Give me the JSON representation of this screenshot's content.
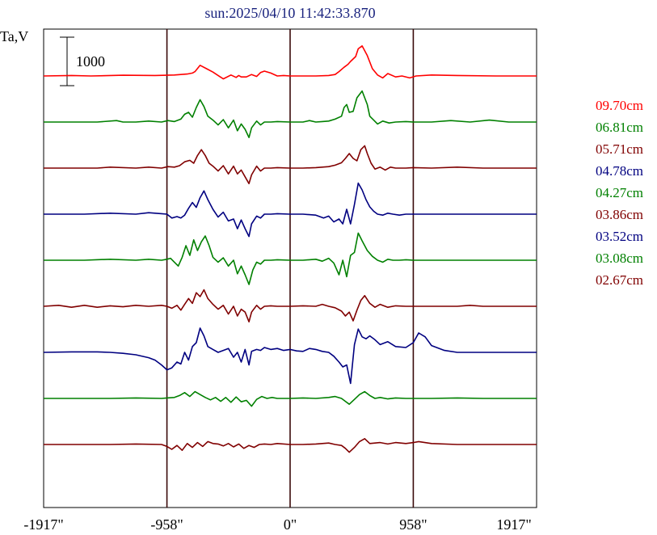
{
  "chart_data": {
    "type": "line",
    "title": "sun:2025/04/10 11:42:33.870",
    "ylabel": "Ta,V",
    "xlabel": "",
    "xlim": [
      -1917,
      1917
    ],
    "x_ticks": [
      -1917,
      -958,
      0,
      958,
      1917
    ],
    "x_tick_labels": [
      "-1917\"",
      "-958\"",
      "0\"",
      "958\"",
      "1917\""
    ],
    "vertical_lines": [
      -958,
      0,
      958
    ],
    "scale_bar": {
      "label": "1000",
      "value": 1000
    },
    "grid": false,
    "legend_position": "right",
    "colors": {
      "red": "#ff0000",
      "green": "#008000",
      "maroon": "#800000",
      "navy": "#000080",
      "frame": "#000000",
      "guide": "#3a0a0a",
      "title": "#1a237e"
    },
    "series": [
      {
        "name": "09.70cm",
        "color": "#ff0000",
        "baseline": 4650,
        "x": [
          -1917,
          -1700,
          -1550,
          -1300,
          -1050,
          -900,
          -800,
          -760,
          -740,
          -700,
          -650,
          -600,
          -560,
          -520,
          -460,
          -420,
          -400,
          -380,
          -340,
          -300,
          -260,
          -230,
          -200,
          -150,
          -100,
          -50,
          0,
          100,
          200,
          300,
          350,
          380,
          420,
          450,
          470,
          510,
          530,
          560,
          600,
          640,
          680,
          720,
          760,
          820,
          870,
          930,
          980,
          1100,
          1300,
          1600,
          1917
        ],
        "y": [
          0,
          10,
          0,
          15,
          10,
          20,
          40,
          60,
          90,
          220,
          150,
          80,
          10,
          -60,
          20,
          -30,
          10,
          -20,
          -20,
          30,
          -10,
          70,
          100,
          60,
          0,
          10,
          0,
          0,
          0,
          10,
          30,
          90,
          180,
          240,
          300,
          400,
          560,
          620,
          420,
          150,
          20,
          -40,
          50,
          -20,
          0,
          -40,
          0,
          20,
          10,
          0,
          0
        ]
      },
      {
        "name": "06.81cm",
        "color": "#008000",
        "baseline": 3700,
        "x": [
          -1917,
          -1500,
          -1350,
          -1300,
          -1200,
          -1100,
          -1000,
          -950,
          -900,
          -850,
          -820,
          -790,
          -760,
          -730,
          -700,
          -670,
          -640,
          -600,
          -560,
          -520,
          -480,
          -440,
          -410,
          -380,
          -350,
          -320,
          -300,
          -260,
          -230,
          -200,
          -150,
          -100,
          0,
          100,
          150,
          200,
          250,
          300,
          350,
          400,
          420,
          440,
          460,
          490,
          520,
          560,
          600,
          620,
          650,
          680,
          720,
          770,
          820,
          900,
          958,
          1100,
          1250,
          1400,
          1550,
          1700,
          1917
        ],
        "y": [
          0,
          0,
          30,
          0,
          0,
          20,
          0,
          30,
          10,
          60,
          160,
          200,
          100,
          300,
          460,
          320,
          120,
          40,
          -60,
          50,
          -120,
          40,
          -180,
          -40,
          -150,
          -320,
          -120,
          20,
          -60,
          0,
          0,
          10,
          0,
          0,
          30,
          0,
          10,
          20,
          60,
          120,
          300,
          360,
          200,
          220,
          500,
          640,
          360,
          120,
          40,
          -40,
          20,
          -20,
          0,
          10,
          0,
          0,
          30,
          0,
          40,
          0,
          0
        ]
      },
      {
        "name": "05.71cm",
        "color": "#800000",
        "baseline": 2750,
        "x": [
          -1917,
          -1500,
          -1400,
          -1200,
          -1100,
          -1000,
          -950,
          -900,
          -860,
          -820,
          -780,
          -750,
          -720,
          -690,
          -660,
          -630,
          -600,
          -560,
          -520,
          -480,
          -440,
          -410,
          -380,
          -350,
          -320,
          -300,
          -260,
          -230,
          -200,
          -150,
          -100,
          0,
          100,
          200,
          300,
          350,
          400,
          430,
          460,
          490,
          520,
          550,
          580,
          600,
          630,
          660,
          700,
          740,
          780,
          820,
          900,
          958,
          1100,
          1300,
          1500,
          1700,
          1917
        ],
        "y": [
          0,
          0,
          20,
          0,
          20,
          0,
          30,
          20,
          50,
          130,
          160,
          100,
          260,
          380,
          260,
          100,
          40,
          -60,
          50,
          -120,
          40,
          -120,
          -40,
          -180,
          -320,
          -140,
          40,
          -60,
          0,
          0,
          10,
          0,
          0,
          10,
          30,
          60,
          110,
          200,
          300,
          200,
          150,
          380,
          460,
          300,
          100,
          -20,
          20,
          -40,
          20,
          0,
          0,
          10,
          0,
          20,
          0,
          0,
          0
        ]
      },
      {
        "name": "04.78cm",
        "color": "#000080",
        "baseline": 1800,
        "x": [
          -1917,
          -1600,
          -1400,
          -1200,
          -1100,
          -1000,
          -958,
          -920,
          -880,
          -850,
          -820,
          -790,
          -760,
          -730,
          -700,
          -670,
          -640,
          -600,
          -560,
          -520,
          -480,
          -440,
          -410,
          -380,
          -350,
          -320,
          -300,
          -260,
          -230,
          -200,
          -150,
          -100,
          0,
          100,
          200,
          260,
          300,
          340,
          380,
          410,
          440,
          470,
          500,
          530,
          560,
          590,
          620,
          650,
          680,
          720,
          760,
          800,
          850,
          900,
          958,
          1100,
          1300,
          1500,
          1700,
          1917
        ],
        "y": [
          0,
          0,
          20,
          0,
          30,
          10,
          0,
          -80,
          -50,
          -80,
          -20,
          120,
          240,
          140,
          340,
          480,
          300,
          100,
          -60,
          40,
          -140,
          -100,
          -300,
          -120,
          -300,
          -460,
          -200,
          -40,
          -80,
          0,
          0,
          10,
          0,
          0,
          -20,
          -80,
          -40,
          -160,
          -100,
          -200,
          100,
          -200,
          200,
          640,
          500,
          300,
          150,
          60,
          0,
          -20,
          20,
          0,
          -20,
          0,
          0,
          0,
          0,
          0,
          0,
          0
        ]
      },
      {
        "name": "04.27cm",
        "color": "#008000",
        "baseline": 850,
        "x": [
          -1917,
          -1600,
          -1400,
          -1200,
          -1100,
          -1000,
          -958,
          -930,
          -900,
          -870,
          -840,
          -810,
          -780,
          -750,
          -720,
          -690,
          -660,
          -630,
          -600,
          -560,
          -520,
          -480,
          -440,
          -410,
          -380,
          -350,
          -320,
          -290,
          -260,
          -230,
          -200,
          -150,
          -100,
          0,
          100,
          200,
          250,
          300,
          340,
          380,
          410,
          440,
          470,
          500,
          530,
          560,
          600,
          640,
          680,
          720,
          760,
          800,
          850,
          900,
          958,
          1100,
          1300,
          1500,
          1700,
          1917
        ],
        "y": [
          0,
          0,
          20,
          0,
          20,
          0,
          20,
          40,
          -40,
          -120,
          60,
          300,
          100,
          420,
          200,
          380,
          500,
          300,
          60,
          -40,
          50,
          -120,
          0,
          -280,
          -120,
          -300,
          -500,
          -200,
          -40,
          -80,
          0,
          0,
          10,
          0,
          0,
          20,
          -20,
          40,
          -60,
          -300,
          0,
          -340,
          100,
          160,
          560,
          400,
          200,
          80,
          0,
          -40,
          20,
          0,
          0,
          10,
          0,
          0,
          0,
          0,
          0,
          0
        ]
      },
      {
        "name": "03.86cm",
        "color": "#800000",
        "baseline": -100,
        "x": [
          -1917,
          -1800,
          -1700,
          -1600,
          -1500,
          -1400,
          -1300,
          -1200,
          -1100,
          -1000,
          -958,
          -920,
          -880,
          -850,
          -820,
          -790,
          -760,
          -730,
          -700,
          -670,
          -640,
          -600,
          -560,
          -520,
          -480,
          -440,
          -410,
          -380,
          -350,
          -320,
          -300,
          -260,
          -230,
          -200,
          -150,
          -100,
          0,
          100,
          200,
          250,
          300,
          350,
          400,
          430,
          460,
          490,
          520,
          550,
          580,
          620,
          660,
          700,
          760,
          820,
          900,
          958,
          1100,
          1300,
          1400,
          1500,
          1700,
          1917
        ],
        "y": [
          0,
          20,
          -20,
          20,
          -20,
          10,
          -10,
          20,
          0,
          20,
          0,
          -40,
          20,
          -80,
          40,
          160,
          60,
          280,
          200,
          340,
          160,
          40,
          -60,
          20,
          -160,
          0,
          -200,
          -60,
          -120,
          -320,
          -120,
          20,
          -60,
          0,
          10,
          0,
          0,
          10,
          0,
          40,
          0,
          -30,
          -100,
          -200,
          -120,
          -300,
          -80,
          120,
          220,
          60,
          -20,
          40,
          -20,
          10,
          0,
          0,
          0,
          0,
          20,
          0,
          0,
          0
        ]
      },
      {
        "name": "03.52cm",
        "color": "#000080",
        "baseline": -1050,
        "x": [
          -1917,
          -1700,
          -1500,
          -1400,
          -1300,
          -1200,
          -1100,
          -1050,
          -1000,
          -958,
          -920,
          -880,
          -850,
          -820,
          -790,
          -760,
          -730,
          -700,
          -670,
          -640,
          -600,
          -560,
          -520,
          -480,
          -440,
          -410,
          -380,
          -350,
          -320,
          -300,
          -260,
          -230,
          -200,
          -150,
          -100,
          -50,
          0,
          50,
          100,
          150,
          200,
          250,
          300,
          340,
          380,
          410,
          440,
          470,
          500,
          530,
          560,
          590,
          620,
          660,
          700,
          760,
          820,
          900,
          958,
          1000,
          1050,
          1100,
          1200,
          1300,
          1500,
          1700,
          1917
        ],
        "y": [
          0,
          10,
          10,
          0,
          -20,
          -50,
          -110,
          -160,
          -260,
          -360,
          -320,
          -200,
          -240,
          0,
          -160,
          120,
          200,
          500,
          340,
          120,
          60,
          0,
          40,
          80,
          -100,
          0,
          -200,
          60,
          -260,
          20,
          60,
          40,
          100,
          60,
          80,
          40,
          60,
          30,
          20,
          80,
          60,
          20,
          0,
          -80,
          -200,
          -300,
          -260,
          -640,
          160,
          480,
          320,
          280,
          340,
          260,
          160,
          220,
          120,
          100,
          200,
          400,
          320,
          140,
          40,
          0,
          0,
          0,
          0
        ]
      },
      {
        "name": "03.08cm",
        "color": "#008000",
        "baseline": -2000,
        "x": [
          -1917,
          -1600,
          -1400,
          -1200,
          -1000,
          -958,
          -900,
          -860,
          -820,
          -780,
          -740,
          -700,
          -660,
          -620,
          -580,
          -540,
          -500,
          -460,
          -420,
          -380,
          -340,
          -300,
          -260,
          -220,
          -180,
          -140,
          -100,
          0,
          100,
          200,
          300,
          350,
          400,
          430,
          460,
          500,
          540,
          580,
          620,
          660,
          700,
          760,
          820,
          900,
          958,
          1100,
          1300,
          1500,
          1700,
          1917
        ],
        "y": [
          0,
          0,
          0,
          10,
          0,
          10,
          20,
          60,
          120,
          40,
          140,
          80,
          20,
          -30,
          20,
          -60,
          20,
          -80,
          30,
          -70,
          -40,
          -160,
          -20,
          40,
          0,
          20,
          0,
          0,
          10,
          0,
          20,
          40,
          0,
          -60,
          -120,
          -20,
          80,
          140,
          60,
          0,
          20,
          -10,
          10,
          0,
          0,
          0,
          10,
          0,
          0,
          0
        ]
      },
      {
        "name": "02.67cm",
        "color": "#800000",
        "baseline": -2950,
        "x": [
          -1917,
          -1600,
          -1400,
          -1200,
          -1000,
          -958,
          -920,
          -880,
          -840,
          -800,
          -760,
          -720,
          -680,
          -640,
          -600,
          -560,
          -520,
          -480,
          -440,
          -400,
          -360,
          -320,
          -280,
          -240,
          -200,
          -150,
          -100,
          0,
          100,
          200,
          300,
          350,
          400,
          430,
          460,
          500,
          540,
          580,
          620,
          660,
          700,
          760,
          820,
          900,
          958,
          1000,
          1100,
          1300,
          1500,
          1700,
          1917
        ],
        "y": [
          0,
          0,
          0,
          10,
          0,
          -40,
          -100,
          -20,
          -120,
          20,
          -60,
          40,
          -40,
          60,
          20,
          10,
          -30,
          20,
          -50,
          10,
          -80,
          -20,
          -60,
          0,
          10,
          0,
          20,
          0,
          0,
          10,
          30,
          0,
          -20,
          -80,
          -160,
          -60,
          60,
          120,
          20,
          30,
          40,
          10,
          40,
          20,
          40,
          60,
          20,
          0,
          0,
          0,
          0
        ]
      }
    ]
  }
}
